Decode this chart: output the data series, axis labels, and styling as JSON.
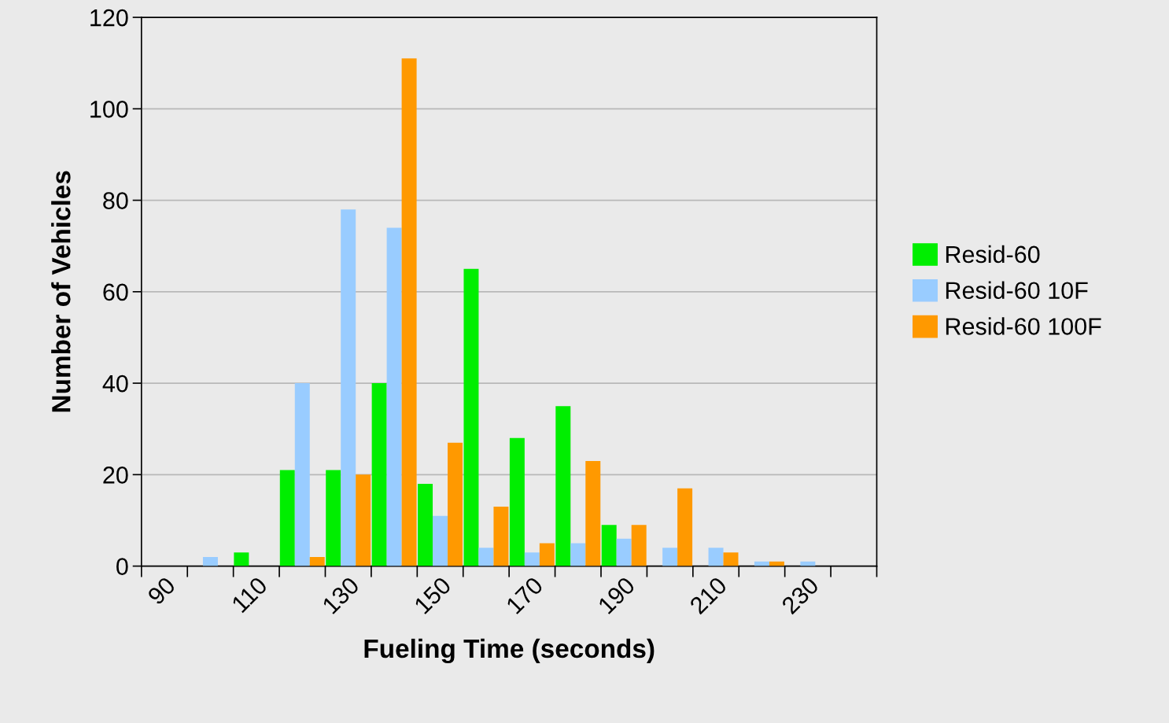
{
  "chart_data": {
    "type": "bar",
    "xlabel": "Fueling Time (seconds)",
    "ylabel": "Number of Vehicles",
    "categories": [
      "90",
      null,
      "110",
      null,
      "130",
      null,
      "150",
      null,
      "170",
      null,
      "190",
      null,
      "210",
      null,
      "230",
      null
    ],
    "series": [
      {
        "name": "Resid-60",
        "color": "#00ee00",
        "values": [
          null,
          null,
          3,
          21,
          21,
          40,
          18,
          65,
          28,
          35,
          9,
          null,
          null,
          null,
          null,
          null
        ]
      },
      {
        "name": "Resid-60 10F",
        "color": "#99ccff",
        "values": [
          null,
          2,
          null,
          40,
          78,
          74,
          11,
          4,
          3,
          5,
          6,
          4,
          4,
          1,
          1,
          null
        ]
      },
      {
        "name": "Resid-60 100F",
        "color": "#ff9900",
        "values": [
          null,
          null,
          null,
          2,
          20,
          111,
          27,
          13,
          5,
          23,
          9,
          17,
          3,
          1,
          null,
          null
        ]
      }
    ],
    "ylim": [
      0,
      120
    ],
    "yticks": [
      0,
      20,
      40,
      60,
      80,
      100,
      120
    ],
    "grid": "y",
    "legend": "right"
  }
}
